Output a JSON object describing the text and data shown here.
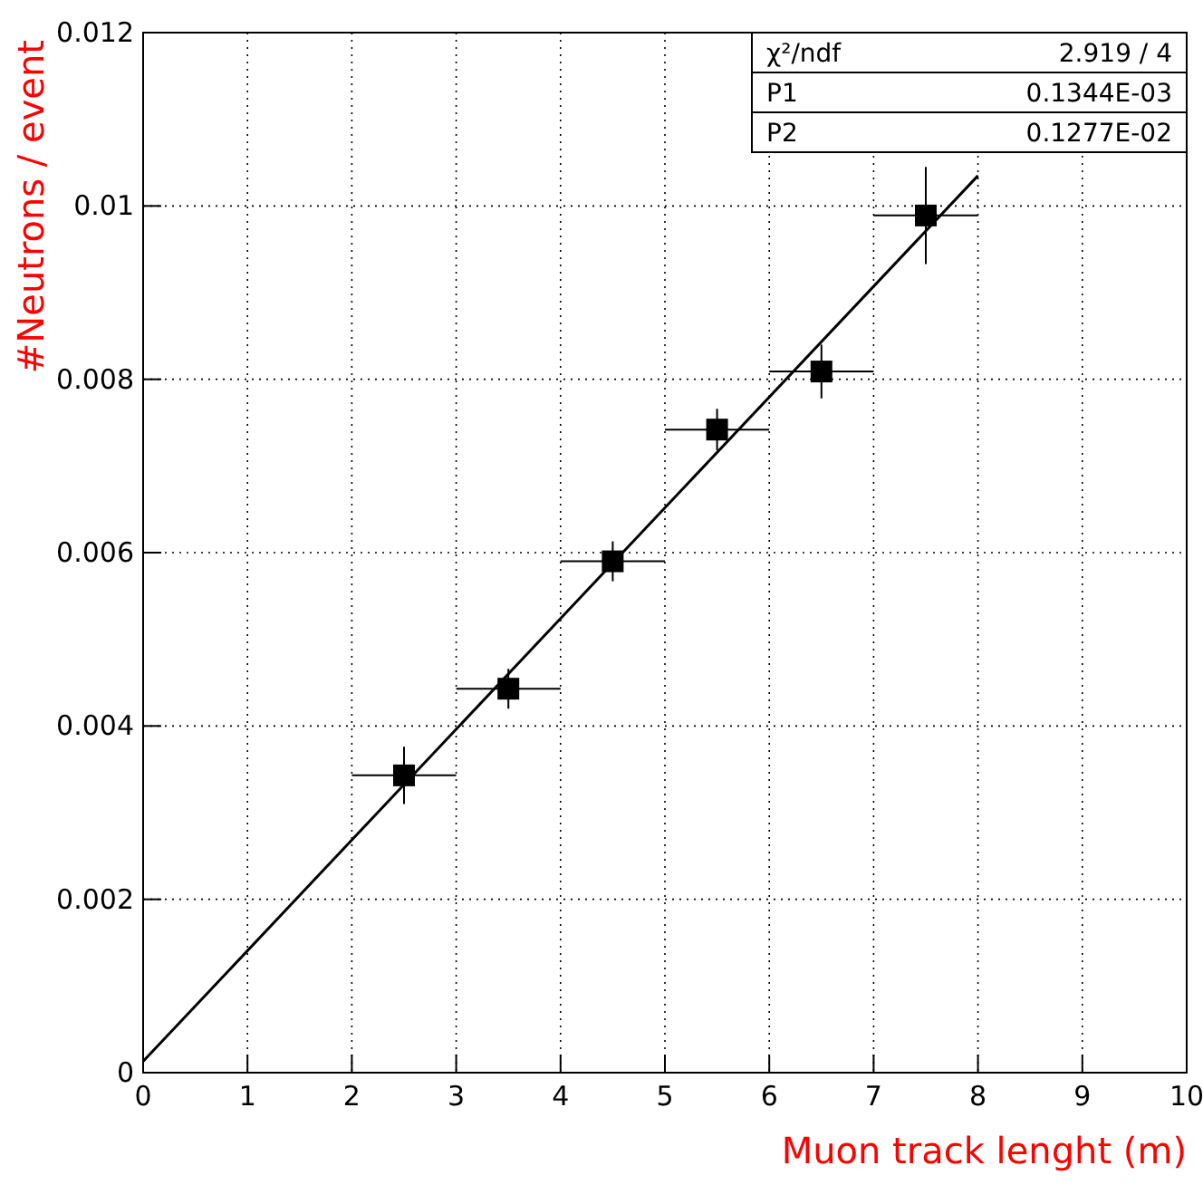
{
  "chart_data": {
    "type": "scatter",
    "xlabel": "Muon track lenght (m)",
    "ylabel": "#Neutrons / event",
    "xlim": [
      0,
      10
    ],
    "xticks": [
      0,
      1,
      2,
      3,
      4,
      5,
      6,
      7,
      8,
      9,
      10
    ],
    "ylim": [
      0,
      0.012
    ],
    "yticks": [
      0,
      0.002,
      0.004,
      0.006,
      0.008,
      0.01,
      0.012
    ],
    "grid": true,
    "marker": "square",
    "annotations": [
      "χ²/ndf 2.919 / 4",
      "P1 0.1344E-03",
      "P2 0.1277E-02"
    ],
    "series": [
      {
        "color": "#000000",
        "x": [
          2.5,
          3.5,
          4.5,
          5.5,
          6.5,
          7.5
        ],
        "values": [
          0.00343,
          0.00443,
          0.0059,
          0.00742,
          0.00809,
          0.00989
        ],
        "errors": [
          0.00033,
          0.00023,
          0.00023,
          0.00024,
          0.00031,
          0.00056
        ],
        "xerrors": [
          0.5,
          0.5,
          0.5,
          0.5,
          0.5,
          0.5
        ]
      },
      {
        "type": "line",
        "color": "#000000",
        "line_style": "solid",
        "marker": "none",
        "x": [
          0,
          8
        ],
        "values": [
          0.00013,
          0.01035
        ]
      }
    ]
  }
}
